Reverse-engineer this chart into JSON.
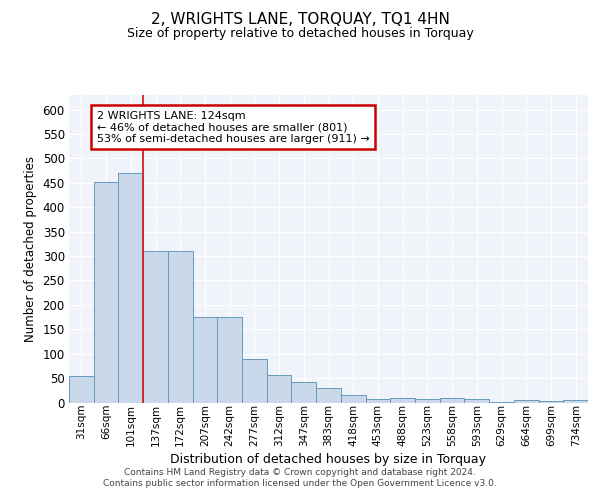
{
  "title": "2, WRIGHTS LANE, TORQUAY, TQ1 4HN",
  "subtitle": "Size of property relative to detached houses in Torquay",
  "xlabel": "Distribution of detached houses by size in Torquay",
  "ylabel": "Number of detached properties",
  "categories": [
    "31sqm",
    "66sqm",
    "101sqm",
    "137sqm",
    "172sqm",
    "207sqm",
    "242sqm",
    "277sqm",
    "312sqm",
    "347sqm",
    "383sqm",
    "418sqm",
    "453sqm",
    "488sqm",
    "523sqm",
    "558sqm",
    "593sqm",
    "629sqm",
    "664sqm",
    "699sqm",
    "734sqm"
  ],
  "values": [
    54,
    452,
    470,
    310,
    310,
    175,
    175,
    90,
    57,
    42,
    30,
    15,
    8,
    10,
    8,
    10,
    8,
    2,
    5,
    3,
    5
  ],
  "bar_color": "#c9d9ea",
  "bar_edge_color": "#6699bb",
  "background_color": "#f0f4fa",
  "grid_color": "#ffffff",
  "red_line_x": 3.0,
  "annotation_text": "2 WRIGHTS LANE: 124sqm\n← 46% of detached houses are smaller (801)\n53% of semi-detached houses are larger (911) →",
  "annotation_box_color": "#ffffff",
  "annotation_box_edge": "#cc0000",
  "footer_text": "Contains HM Land Registry data © Crown copyright and database right 2024.\nContains public sector information licensed under the Open Government Licence v3.0.",
  "fig_background": "#ffffff",
  "ylim": [
    0,
    630
  ],
  "yticks": [
    0,
    50,
    100,
    150,
    200,
    250,
    300,
    350,
    400,
    450,
    500,
    550,
    600
  ]
}
